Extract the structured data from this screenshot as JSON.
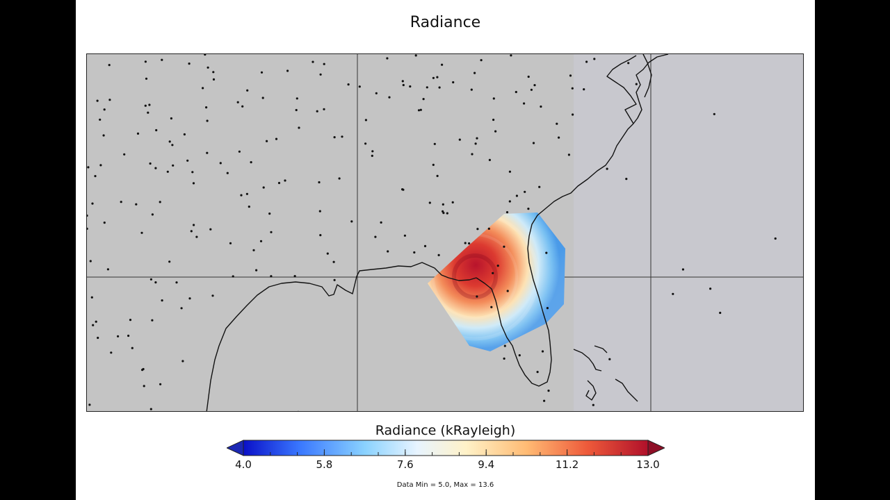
{
  "title": "Radiance",
  "colorbar": {
    "label": "Radiance (kRayleigh)",
    "min": 4.0,
    "max": 13.0,
    "ticks": [
      "4.0",
      "5.8",
      "7.6",
      "9.4",
      "11.2",
      "13.0"
    ],
    "colormap": [
      "#0a10c8",
      "#3a78ff",
      "#8ad2ff",
      "#e8f4ff",
      "#fff2c8",
      "#ffbb74",
      "#ee5a3a",
      "#b0102a"
    ],
    "under_color": "#1c28b4",
    "over_color": "#8e0e26"
  },
  "data_range_text": "Data Min = 5.0, Max = 13.6",
  "colors": {
    "map_background": "#c4c4c4",
    "coastline": "#111111",
    "station_dot": "#111111"
  }
}
